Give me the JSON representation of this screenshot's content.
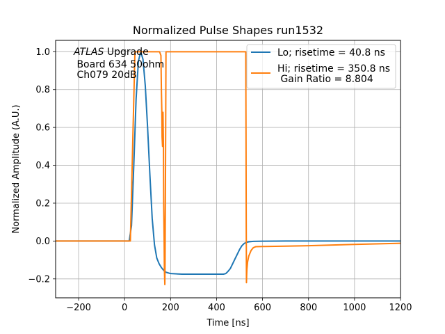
{
  "chart_data": {
    "type": "line",
    "title": "Normalized Pulse Shapes run1532",
    "xlabel": "Time [ns]",
    "ylabel": "Normalized Amplitude (A.U.)",
    "xlim": [
      -300,
      1200
    ],
    "ylim": [
      -0.3,
      1.06
    ],
    "xticks": [
      -200,
      0,
      200,
      400,
      600,
      800,
      1000,
      1200
    ],
    "xtick_labels": [
      "−200",
      "0",
      "200",
      "400",
      "600",
      "800",
      "1000",
      "1200"
    ],
    "yticks": [
      -0.2,
      0.0,
      0.2,
      0.4,
      0.6,
      0.8,
      1.0
    ],
    "ytick_labels": [
      "−0.2",
      "0.0",
      "0.2",
      "0.4",
      "0.6",
      "0.8",
      "1.0"
    ],
    "grid": true,
    "legend_position": "top-right",
    "annotation": {
      "italic": "ATLAS",
      "line1_rest": " Upgrade",
      "line2": " Board 634 50ohm",
      "line3": " Ch079 20dB"
    },
    "series": [
      {
        "name": "Lo; risetime = 40.8 ns",
        "color": "#1f77b4",
        "x": [
          -300,
          20,
          30,
          40,
          50,
          60,
          70,
          80,
          90,
          100,
          110,
          120,
          130,
          140,
          150,
          160,
          170,
          180,
          200,
          250,
          300,
          350,
          400,
          430,
          440,
          450,
          460,
          470,
          480,
          490,
          500,
          510,
          520,
          530,
          540,
          560,
          600,
          700,
          800,
          1000,
          1200
        ],
        "y": [
          0.0,
          0.0,
          0.08,
          0.4,
          0.75,
          0.95,
          1.0,
          0.96,
          0.82,
          0.6,
          0.35,
          0.12,
          -0.02,
          -0.09,
          -0.12,
          -0.14,
          -0.155,
          -0.165,
          -0.172,
          -0.175,
          -0.175,
          -0.175,
          -0.175,
          -0.175,
          -0.172,
          -0.16,
          -0.145,
          -0.12,
          -0.095,
          -0.07,
          -0.045,
          -0.025,
          -0.013,
          -0.007,
          -0.004,
          -0.002,
          -0.001,
          0.0,
          0.0,
          0.0,
          0.0
        ]
      },
      {
        "name": "Hi; risetime = 350.8 ns",
        "color": "#ff7f0e",
        "x": [
          -300,
          25,
          35,
          45,
          152,
          158,
          160,
          162,
          163,
          165,
          167,
          169,
          170,
          172,
          173,
          175,
          176,
          178,
          180,
          182,
          527,
          528,
          529,
          530,
          531,
          532,
          535,
          540,
          550,
          560,
          570,
          600,
          700,
          800,
          1000,
          1200
        ],
        "y": [
          0.0,
          0.0,
          0.5,
          1.0,
          1.0,
          0.98,
          0.8,
          0.68,
          0.55,
          0.5,
          0.68,
          0.5,
          0.2,
          0.0,
          -0.15,
          -0.23,
          -0.12,
          0.4,
          1.0,
          1.0,
          1.0,
          0.6,
          0.1,
          -0.22,
          -0.18,
          -0.15,
          -0.11,
          -0.08,
          -0.05,
          -0.035,
          -0.03,
          -0.029,
          -0.027,
          -0.025,
          -0.018,
          -0.012
        ]
      }
    ],
    "legend_extra": " Gain Ratio = 8.804"
  }
}
